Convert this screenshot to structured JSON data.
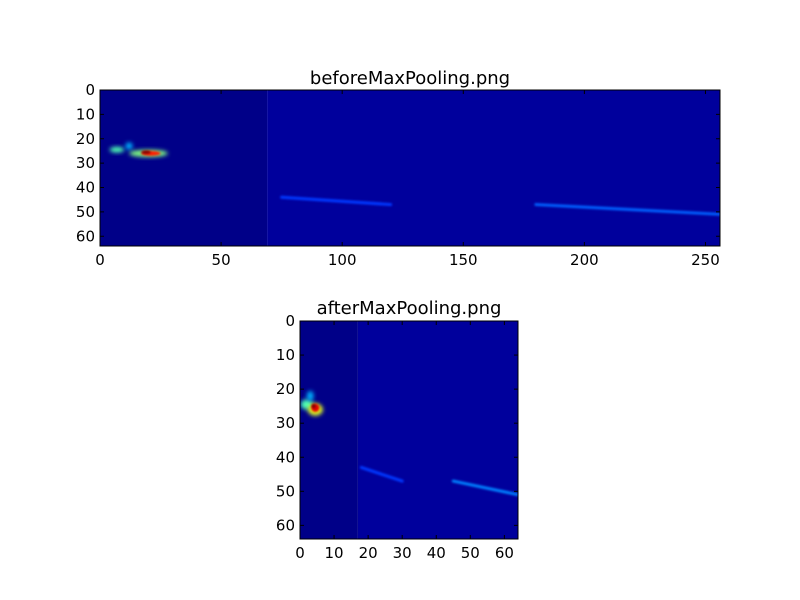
{
  "chart_data": [
    {
      "type": "heatmap",
      "title": "beforeMaxPooling.png",
      "colormap": "jet",
      "image_size": [
        256,
        64
      ],
      "xlim": [
        0,
        256
      ],
      "ylim": [
        64,
        0
      ],
      "xticks": [
        0,
        50,
        100,
        150,
        200,
        250
      ],
      "yticks": [
        0,
        10,
        20,
        30,
        40,
        50,
        60
      ],
      "background_colors": {
        "left": "#000088",
        "right": "#00009c"
      },
      "region_split_x": 69,
      "hotspots": [
        {
          "x": 7,
          "y": 24.5,
          "rx": 3,
          "ry": 1.2,
          "intensity": 0.45
        },
        {
          "x": 12,
          "y": 23,
          "rx": 1.5,
          "ry": 1.5,
          "intensity": 0.3
        },
        {
          "x": 20,
          "y": 26,
          "rx": 8,
          "ry": 1.5,
          "intensity": 0.5
        },
        {
          "x": 21,
          "y": 26,
          "rx": 4,
          "ry": 1.0,
          "intensity": 0.85
        },
        {
          "x": 19,
          "y": 25.5,
          "rx": 2,
          "ry": 0.7,
          "intensity": 1.0
        }
      ],
      "streaks": [
        {
          "x1": 75,
          "y1": 44,
          "x2": 120,
          "y2": 47,
          "intensity": 0.18
        },
        {
          "x1": 180,
          "y1": 47,
          "x2": 256,
          "y2": 51,
          "intensity": 0.22
        }
      ]
    },
    {
      "type": "heatmap",
      "title": "afterMaxPooling.png",
      "colormap": "jet",
      "image_size": [
        64,
        64
      ],
      "xlim": [
        0,
        64
      ],
      "ylim": [
        64,
        0
      ],
      "xticks": [
        0,
        10,
        20,
        30,
        40,
        50,
        60
      ],
      "yticks": [
        0,
        10,
        20,
        30,
        40,
        50,
        60
      ],
      "background_colors": {
        "left": "#000088",
        "right": "#00009c"
      },
      "region_split_x": 17,
      "hotspots": [
        {
          "x": 2,
          "y": 24.5,
          "rx": 1.8,
          "ry": 1.5,
          "intensity": 0.45
        },
        {
          "x": 3,
          "y": 22,
          "rx": 1,
          "ry": 1.5,
          "intensity": 0.3
        },
        {
          "x": 4.5,
          "y": 26,
          "rx": 2.2,
          "ry": 1.8,
          "intensity": 0.6
        },
        {
          "x": 4.5,
          "y": 25.5,
          "rx": 1.2,
          "ry": 1.2,
          "intensity": 0.9
        },
        {
          "x": 4,
          "y": 25,
          "rx": 0.6,
          "ry": 0.6,
          "intensity": 1.0
        }
      ],
      "streaks": [
        {
          "x1": 18,
          "y1": 43,
          "x2": 30,
          "y2": 47,
          "intensity": 0.18
        },
        {
          "x1": 45,
          "y1": 47,
          "x2": 64,
          "y2": 51,
          "intensity": 0.25
        }
      ]
    }
  ]
}
